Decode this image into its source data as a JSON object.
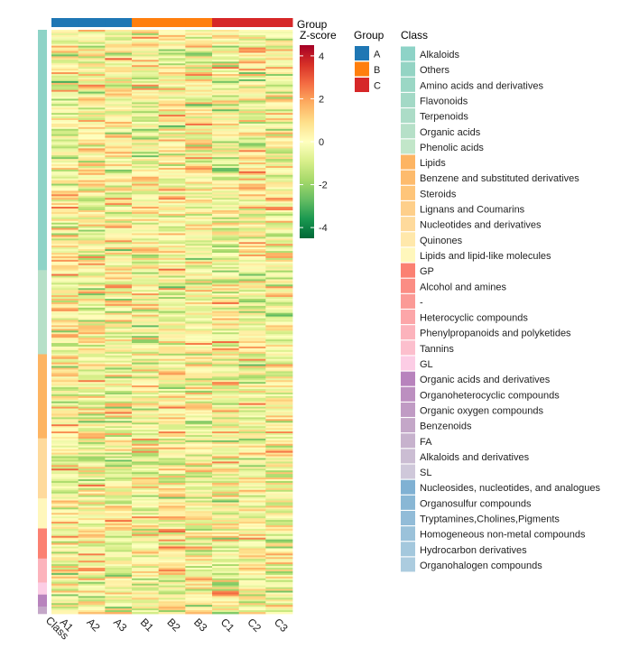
{
  "chart_data": {
    "type": "heatmap",
    "columns": [
      "A1",
      "A2",
      "A3",
      "B1",
      "B2",
      "B3",
      "C1",
      "C2",
      "C3"
    ],
    "column_groups": [
      "A",
      "A",
      "A",
      "B",
      "B",
      "B",
      "C",
      "C",
      "C"
    ],
    "class_axis_label": "Class",
    "zscore": {
      "title": "Z-score",
      "range": [
        -4.5,
        4.5
      ],
      "ticks": [
        4,
        2,
        0,
        -2,
        -4
      ],
      "tick_labels": [
        "4",
        "2",
        "0",
        "-2",
        "-4"
      ],
      "colors": [
        "#006837",
        "#1a9850",
        "#66bd63",
        "#a6d96a",
        "#d9ef8b",
        "#ffffbf",
        "#fee08b",
        "#fdae61",
        "#f46d43",
        "#d73027",
        "#a50026"
      ]
    },
    "group_legend": {
      "title": "Group",
      "items": [
        {
          "label": "A",
          "color": "#1f77b4"
        },
        {
          "label": "B",
          "color": "#ff7f0e"
        },
        {
          "label": "C",
          "color": "#d62728"
        }
      ]
    },
    "class_legend": {
      "title": "Class",
      "items": [
        {
          "label": "Alkaloids",
          "color": "#8ed3c7"
        },
        {
          "label": "Others",
          "color": "#94d4c4"
        },
        {
          "label": "Amino acids and derivatives",
          "color": "#9bd7c5"
        },
        {
          "label": "Flavonoids",
          "color": "#a3d9c6"
        },
        {
          "label": "Terpenoids",
          "color": "#acdcc7"
        },
        {
          "label": "Organic acids",
          "color": "#b6e0c8"
        },
        {
          "label": "Phenolic acids",
          "color": "#c2e6c9"
        },
        {
          "label": "Lipids",
          "color": "#fdb462"
        },
        {
          "label": "Benzene and substituted derivatives",
          "color": "#fdbb6d"
        },
        {
          "label": "Steroids",
          "color": "#fec57a"
        },
        {
          "label": "Lignans and Coumarins",
          "color": "#fecf8a"
        },
        {
          "label": "Nucleotides and derivatives",
          "color": "#feda9c"
        },
        {
          "label": "Quinones",
          "color": "#ffe8ab"
        },
        {
          "label": "Lipids and lipid-like molecules",
          "color": "#fff7bc"
        },
        {
          "label": "GP",
          "color": "#fb8072"
        },
        {
          "label": "Alcohol and amines",
          "color": "#fb8d84"
        },
        {
          "label": "-",
          "color": "#fb9a96"
        },
        {
          "label": "Heterocyclic compounds",
          "color": "#fca6a9"
        },
        {
          "label": "Phenylpropanoids and polyketides",
          "color": "#fcb3bc"
        },
        {
          "label": "Tannins",
          "color": "#fcbfcd"
        },
        {
          "label": "GL",
          "color": "#fccde5"
        },
        {
          "label": "Organic acids and derivatives",
          "color": "#b883bd"
        },
        {
          "label": "Organoheterocyclic compounds",
          "color": "#bc8fc0"
        },
        {
          "label": "Organic oxygen compounds",
          "color": "#c09bc4"
        },
        {
          "label": "Benzenoids",
          "color": "#c4a7c8"
        },
        {
          "label": "FA",
          "color": "#c7b2cd"
        },
        {
          "label": "Alkaloids and derivatives",
          "color": "#cbbdd3"
        },
        {
          "label": "SL",
          "color": "#cfc8da"
        },
        {
          "label": "Nucleosides, nucleotides, and analogues",
          "color": "#80b1d3"
        },
        {
          "label": "Organosulfur compounds",
          "color": "#89b7d5"
        },
        {
          "label": "Tryptamines,Cholines,Pigments",
          "color": "#92bcd8"
        },
        {
          "label": "Homogeneous non-metal compounds",
          "color": "#9bc2da"
        },
        {
          "label": "Hydrocarbon derivatives",
          "color": "#a4c8dd"
        },
        {
          "label": "Organohalogen compounds",
          "color": "#acccdf"
        }
      ]
    },
    "class_band_colors": [
      "#8ed3c7",
      "#b6e0c8",
      "#fdb462",
      "#feda9c",
      "#fff7bc",
      "#fb8072",
      "#fcb3bc",
      "#fccde5",
      "#b883bd",
      "#c4a7c8"
    ],
    "class_band_rows": [
      200,
      70,
      70,
      50,
      25,
      25,
      20,
      10,
      10,
      6
    ]
  }
}
